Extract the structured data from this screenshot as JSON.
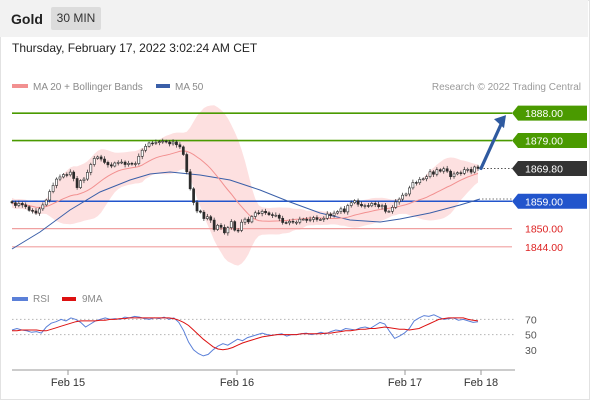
{
  "header": {
    "title": "Gold",
    "timeframe": "30 MIN"
  },
  "datetime": "Thursday, February 17, 2022 3:02:24 AM CET",
  "legend": {
    "ma20": "MA 20 + Bollinger Bands",
    "ma50": "MA 50",
    "copyright": "Research © 2022 Trading Central"
  },
  "rsi_legend": {
    "rsi": "RSI",
    "ma9": "9MA"
  },
  "colors": {
    "resistance": "#4a9a00",
    "support": "#2255cc",
    "support_weak": "#f0a0a0",
    "price": "#333333",
    "bollinger_fill": "#fde0e0",
    "ma20": "#f29090",
    "ma50": "#3a5fa8",
    "arrow": "#2f5aa0",
    "rsi": "#5b80d8",
    "rsi_ma": "#dd1111"
  },
  "chart_data": [
    {
      "type": "candlestick",
      "title": "Gold",
      "ylim": [
        1839,
        1893
      ],
      "levels": [
        {
          "label": "1888.00",
          "value": 1888.0,
          "kind": "resistance"
        },
        {
          "label": "1879.00",
          "value": 1879.0,
          "kind": "resistance"
        },
        {
          "label": "1869.80",
          "value": 1869.8,
          "kind": "price"
        },
        {
          "label": "1859.00",
          "value": 1859.0,
          "kind": "support"
        },
        {
          "label": "1850.00",
          "value": 1850.0,
          "kind": "support_weak"
        },
        {
          "label": "1844.00",
          "value": 1844.0,
          "kind": "support_weak"
        }
      ],
      "x_ticks": [
        "Feb 15",
        "Feb 16",
        "Feb 17",
        "Feb 18"
      ],
      "close": [
        1858.5,
        1857.6,
        1858.3,
        1857.8,
        1857.2,
        1856.0,
        1855.8,
        1855.1,
        1856.5,
        1857.8,
        1859.4,
        1862.2,
        1864.2,
        1866.3,
        1867.0,
        1867.8,
        1867.7,
        1868.6,
        1866.5,
        1863.5,
        1865.8,
        1866.3,
        1868.5,
        1871.1,
        1873.1,
        1873.6,
        1872.9,
        1871.8,
        1871.0,
        1870.6,
        1871.6,
        1871.8,
        1871.9,
        1871.1,
        1871.5,
        1871.2,
        1871.4,
        1873.8,
        1875.8,
        1877.1,
        1878.2,
        1878.1,
        1878.4,
        1878.6,
        1878.8,
        1878.5,
        1877.9,
        1878.5,
        1877.6,
        1876.9,
        1874.4,
        1868.7,
        1863.1,
        1858.6,
        1855.8,
        1855.4,
        1853.3,
        1853.9,
        1852.8,
        1849.7,
        1851.1,
        1850.4,
        1848.6,
        1850.3,
        1852.3,
        1849.5,
        1849.4,
        1852.1,
        1853.1,
        1852.2,
        1854.0,
        1855.2,
        1855.0,
        1855.7,
        1855.2,
        1854.6,
        1854.3,
        1854.4,
        1853.4,
        1852.0,
        1851.9,
        1852.4,
        1852.1,
        1852.1,
        1853.1,
        1853.1,
        1852.7,
        1853.0,
        1853.6,
        1853.0,
        1853.0,
        1853.4,
        1854.8,
        1854.3,
        1855.1,
        1855.6,
        1856.5,
        1855.5,
        1857.6,
        1858.5,
        1859.2,
        1858.0,
        1857.5,
        1857.6,
        1857.5,
        1858.3,
        1857.9,
        1857.2,
        1857.6,
        1855.7,
        1855.7,
        1857.0,
        1858.8,
        1859.7,
        1861.0,
        1861.4,
        1863.4,
        1865.2,
        1865.1,
        1866.2,
        1866.4,
        1867.1,
        1868.7,
        1867.9,
        1869.4,
        1868.9,
        1869.7,
        1868.9,
        1867.1,
        1868.0,
        1868.4,
        1868.2,
        1869.4,
        1869.5,
        1868.6,
        1870.3,
        1869.8
      ],
      "ma50_points": [
        [
          12,
          249
        ],
        [
          40,
          232
        ],
        [
          70,
          210
        ],
        [
          100,
          192
        ],
        [
          130,
          180
        ],
        [
          150,
          174
        ],
        [
          170,
          172
        ],
        [
          200,
          175
        ],
        [
          230,
          180
        ],
        [
          260,
          190
        ],
        [
          290,
          202
        ],
        [
          320,
          213
        ],
        [
          350,
          220
        ],
        [
          380,
          222
        ],
        [
          400,
          219
        ],
        [
          430,
          213
        ],
        [
          460,
          205
        ],
        [
          480,
          199
        ]
      ],
      "forecast_arrow": {
        "from": 1869.8,
        "to": 1888.0
      },
      "annotations": []
    },
    {
      "type": "line",
      "title": "RSI",
      "ylim": [
        10,
        85
      ],
      "y_ticks": [
        70,
        50,
        30
      ],
      "series": [
        {
          "name": "RSI",
          "values": [
            56,
            58,
            56,
            55,
            53,
            54,
            52,
            60,
            65,
            67,
            70,
            68,
            72,
            70,
            66,
            60,
            64,
            68,
            70,
            72,
            70,
            71,
            70,
            73,
            72,
            74,
            73,
            71,
            70,
            72,
            71,
            73,
            70,
            72,
            66,
            55,
            40,
            30,
            25,
            22,
            24,
            30,
            35,
            38,
            36,
            40,
            44,
            42,
            46,
            48,
            50,
            52,
            50,
            49,
            50,
            51,
            48,
            50,
            50,
            51,
            52,
            50,
            51,
            53,
            51,
            54,
            56,
            55,
            58,
            57,
            56,
            59,
            60,
            58,
            62,
            66,
            64,
            54,
            45,
            48,
            52,
            58,
            68,
            72,
            75,
            74,
            76,
            73,
            70,
            71,
            72,
            69,
            70,
            68,
            66,
            67
          ]
        },
        {
          "name": "9MA",
          "values": [
            55,
            55,
            56,
            56,
            56,
            56,
            55,
            55,
            57,
            59,
            61,
            63,
            65,
            67,
            68,
            68,
            68,
            68,
            69,
            69,
            70,
            70,
            71,
            71,
            72,
            72,
            72,
            72,
            72,
            72,
            72,
            72,
            72,
            71,
            69,
            66,
            62,
            56,
            50,
            44,
            39,
            34,
            31,
            30,
            31,
            33,
            36,
            39,
            41,
            43,
            45,
            47,
            48,
            49,
            50,
            50,
            50,
            50,
            50,
            51,
            51,
            51,
            51,
            51,
            52,
            52,
            53,
            54,
            55,
            55,
            56,
            57,
            57,
            58,
            58,
            59,
            60,
            59,
            58,
            57,
            57,
            56,
            57,
            58,
            61,
            64,
            67,
            70,
            71,
            72,
            72,
            72,
            72,
            70,
            69,
            68
          ]
        }
      ]
    }
  ]
}
